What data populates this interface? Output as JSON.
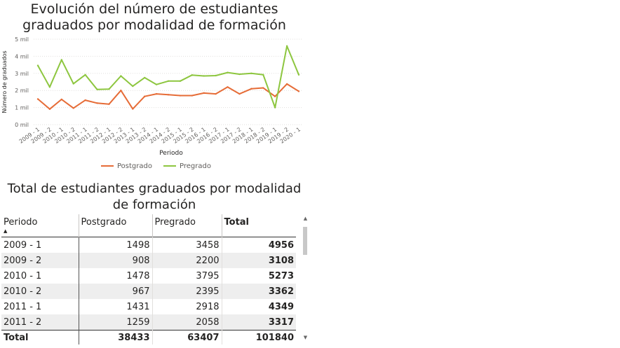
{
  "chart_title": "Evolución del número de estudiantes\ngraduados por modalidad de formación",
  "chart_data": {
    "type": "line",
    "title": "Evolución del número de estudiantes graduados por modalidad de formación",
    "xlabel": "Periodo",
    "ylabel": "Número de graduados",
    "ylim": [
      0,
      5000
    ],
    "yticks": [
      0,
      1000,
      2000,
      3000,
      4000,
      5000
    ],
    "ytick_labels": [
      "0 mil",
      "1 mil",
      "2 mil",
      "3 mil",
      "4 mil",
      "5 mil"
    ],
    "categories": [
      "2009 - 1",
      "2009 - 2",
      "2010 - 1",
      "2010 - 2",
      "2011 - 1",
      "2011 - 2",
      "2012 - 1",
      "2012 - 2",
      "2013 - 1",
      "2013 - 2",
      "2014 - 1",
      "2014 - 2",
      "2015 - 1",
      "2015 - 2",
      "2016 - 1",
      "2016 - 2",
      "2017 - 1",
      "2017 - 2",
      "2018 - 1",
      "2018 - 2",
      "2019 - 1",
      "2019 - 2",
      "2020 - 1"
    ],
    "xtick_labels": [
      "2009 - 1",
      "2009 - 2",
      "2010 - 1",
      "2010 - 2",
      "2011 - 1",
      "2011 - 2",
      "2012 - 1",
      "2012 - 2",
      "2013 - 1",
      "2013 - 2",
      "2014 - 1",
      "2014 - 2",
      "2015 - 1",
      "2015 - 2",
      "2016 - 1",
      "2016 - 2",
      "2017 - 1",
      "2017 - 2",
      "2018 - 1",
      "2018 - 2",
      "2019 - 1",
      "2019 - 2",
      "2020 - 1"
    ],
    "series": [
      {
        "name": "Postgrado",
        "color": "#e66c37",
        "values": [
          1498,
          908,
          1478,
          967,
          1431,
          1259,
          1200,
          2000,
          920,
          1650,
          1800,
          1750,
          1700,
          1700,
          1850,
          1800,
          2200,
          1800,
          2100,
          2150,
          1650,
          2380,
          1950
        ]
      },
      {
        "name": "Pregrado",
        "color": "#8dc63f",
        "values": [
          3458,
          2200,
          3795,
          2395,
          2918,
          2058,
          2080,
          2850,
          2250,
          2750,
          2350,
          2550,
          2550,
          2900,
          2850,
          2870,
          3050,
          2950,
          3000,
          2920,
          1000,
          4600,
          2920
        ]
      }
    ],
    "grid": true,
    "legend_position": "bottom"
  },
  "table": {
    "title": "Total de estudiantes graduados por modalidad\nde formación",
    "columns": [
      "Periodo",
      "Postgrado",
      "Pregrado",
      "Total"
    ],
    "rows": [
      [
        "2009 - 1",
        "1498",
        "3458",
        "4956"
      ],
      [
        "2009 - 2",
        "908",
        "2200",
        "3108"
      ],
      [
        "2010 - 1",
        "1478",
        "3795",
        "5273"
      ],
      [
        "2010 - 2",
        "967",
        "2395",
        "3362"
      ],
      [
        "2011 - 1",
        "1431",
        "2918",
        "4349"
      ],
      [
        "2011 - 2",
        "1259",
        "2058",
        "3317"
      ]
    ],
    "total_row": [
      "Total",
      "38433",
      "63407",
      "101840"
    ],
    "sort_icon": "sort-ascending-icon"
  }
}
